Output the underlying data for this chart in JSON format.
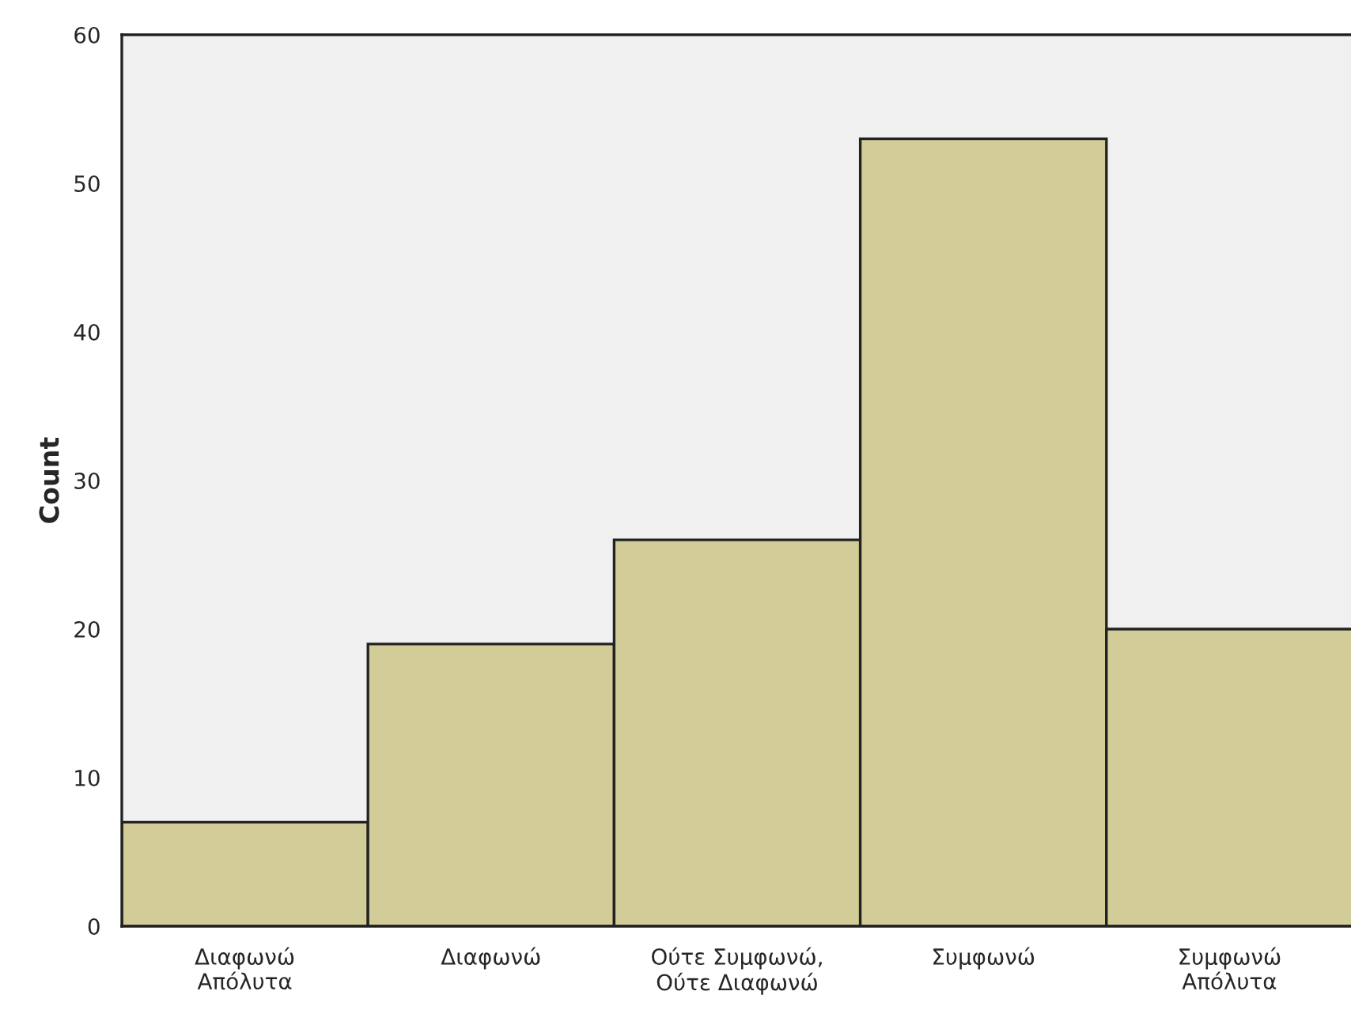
{
  "chart_data": {
    "type": "bar",
    "ylabel": "Count",
    "categories": [
      "Διαφωνώ\nΑπόλυτα",
      "Διαφωνώ",
      "Ούτε Συμφωνώ,\nΟύτε Διαφωνώ",
      "Συμφωνώ",
      "Συμφωνώ\nΑπόλυτα"
    ],
    "values": [
      7,
      19,
      26,
      53,
      20
    ],
    "color": "#d2cd98",
    "ylim": [
      0,
      60
    ],
    "yticks": [
      0,
      10,
      20,
      30,
      40,
      50,
      60
    ],
    "grid": false,
    "legend": false
  }
}
